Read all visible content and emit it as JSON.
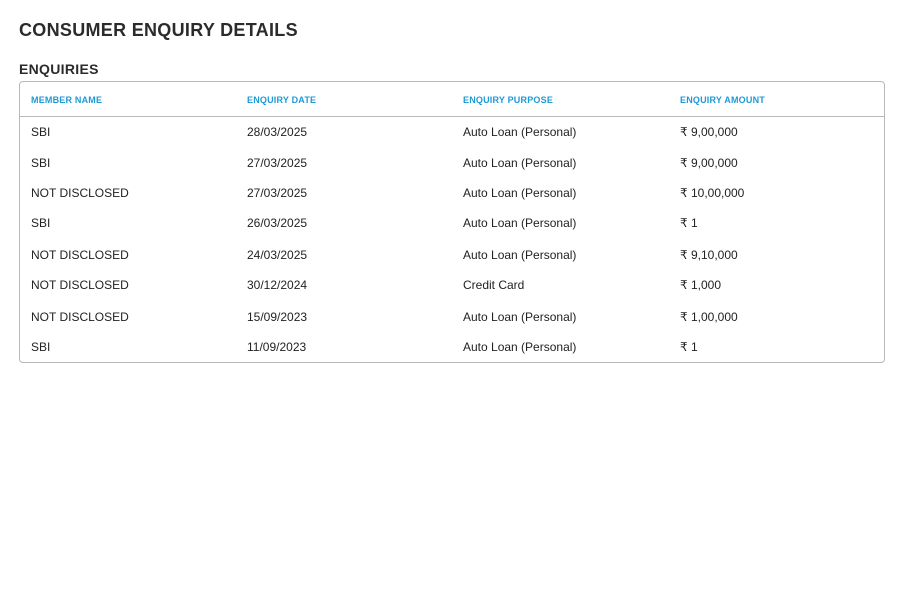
{
  "page": {
    "title": "CONSUMER ENQUIRY DETAILS",
    "section_title": "ENQUIRIES"
  },
  "table": {
    "headers": [
      "MEMBER NAME",
      "ENQUIRY DATE",
      "ENQUIRY PURPOSE",
      "ENQUIRY AMOUNT"
    ],
    "rows": [
      [
        "SBI",
        "28/03/2025",
        "Auto Loan (Personal)",
        "₹ 9,00,000"
      ],
      [
        "SBI",
        "27/03/2025",
        "Auto Loan (Personal)",
        "₹ 9,00,000"
      ],
      [
        "NOT DISCLOSED",
        "27/03/2025",
        "Auto Loan (Personal)",
        "₹ 10,00,000"
      ],
      [
        "SBI",
        "26/03/2025",
        "Auto Loan (Personal)",
        "₹ 1"
      ],
      [
        "NOT DISCLOSED",
        "24/03/2025",
        "Auto Loan (Personal)",
        "₹ 9,10,000"
      ],
      [
        "NOT DISCLOSED",
        "30/12/2024",
        "Credit Card",
        "₹ 1,000"
      ],
      [
        "NOT DISCLOSED",
        "15/09/2023",
        "Auto Loan (Personal)",
        "₹ 1,00,000"
      ],
      [
        "SBI",
        "11/09/2023",
        "Auto Loan (Personal)",
        "₹ 1"
      ]
    ]
  },
  "colors": {
    "header_text": "#1e9ad6",
    "border": "#b9b9b9",
    "text": "#222222"
  }
}
